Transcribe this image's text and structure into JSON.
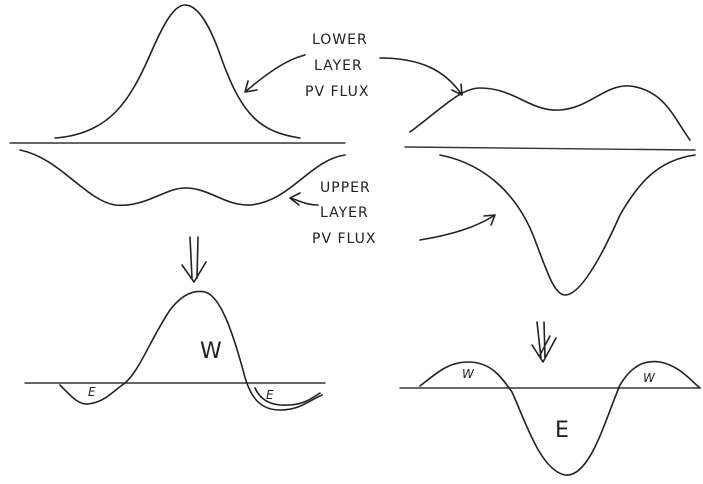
{
  "labels": {
    "lower": {
      "lines": [
        "LOWER",
        "LAYER",
        "PV FLUX"
      ]
    },
    "upper": {
      "lines": [
        "UPPER",
        "LAYER",
        "PV FLUX"
      ]
    }
  },
  "left_result": {
    "center": "W",
    "left": "E",
    "right": "E"
  },
  "right_result": {
    "left": "W",
    "center": "E",
    "right": "W"
  }
}
